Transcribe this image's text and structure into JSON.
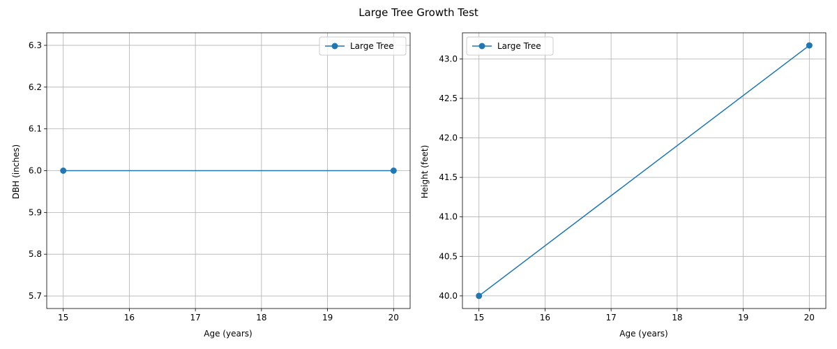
{
  "figure": {
    "title": "Large Tree Growth Test"
  },
  "chart_data": [
    {
      "type": "line",
      "title": "",
      "xlabel": "Age (years)",
      "ylabel": "DBH (inches)",
      "xlim": [
        14.75,
        20.25
      ],
      "ylim": [
        5.67,
        6.33
      ],
      "xticks": [
        "15",
        "16",
        "17",
        "18",
        "19",
        "20"
      ],
      "yticks": [
        "5.7",
        "5.8",
        "5.9",
        "6.0",
        "6.1",
        "6.2",
        "6.3"
      ],
      "grid": true,
      "legend": "top-right",
      "series": [
        {
          "name": "Large Tree",
          "color": "#1f77b4",
          "marker": "circle",
          "x": [
            15,
            20
          ],
          "y": [
            6.0,
            6.0
          ]
        }
      ]
    },
    {
      "type": "line",
      "title": "",
      "xlabel": "Age (years)",
      "ylabel": "Height (feet)",
      "xlim": [
        14.75,
        20.25
      ],
      "ylim": [
        39.84,
        43.33
      ],
      "xticks": [
        "15",
        "16",
        "17",
        "18",
        "19",
        "20"
      ],
      "yticks": [
        "40.0",
        "40.5",
        "41.0",
        "41.5",
        "42.0",
        "42.5",
        "43.0"
      ],
      "grid": true,
      "legend": "top-left",
      "series": [
        {
          "name": "Large Tree",
          "color": "#1f77b4",
          "marker": "circle",
          "x": [
            15,
            20
          ],
          "y": [
            40.0,
            43.17
          ]
        }
      ]
    }
  ]
}
